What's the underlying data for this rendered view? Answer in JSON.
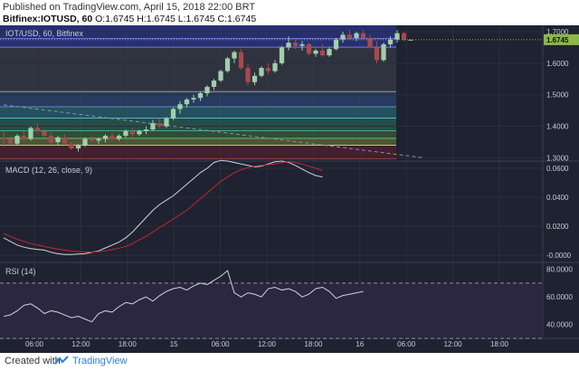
{
  "header": {
    "published": "Published on TradingView.com, April 15, 2018 22:00 BRT",
    "symbol": "Bitfinex:IOTUSD, 60",
    "ohlc": "O:1.6745 H:1.6745 L:1.6745 C:1.6745"
  },
  "footer": {
    "created_with": "Created with",
    "brand": "TradingView"
  },
  "colors": {
    "background": "#1f2230",
    "grid": "#2b2f3e",
    "axis_text": "#c8ccd6",
    "candle_up": "#a2ceaa",
    "candle_down": "#a84a4a",
    "macd_line": "#cfd3dc",
    "signal_line": "#c3262f",
    "rsi_line": "#cfd3dc",
    "rsi_band": "#2b2740",
    "price_label_bg": "#8cb84a"
  },
  "chart_data": [
    {
      "type": "candlestick",
      "title": "IOT/USD, 60, Bitfinex",
      "ylim": [
        1.29,
        1.72
      ],
      "yticks": [
        "1.3000",
        "1.4000",
        "1.5000",
        "1.6000",
        "1.7000"
      ],
      "last_price": "1.6745",
      "xticks": [
        "06:00",
        "12:00",
        "18:00",
        "15",
        "06:00",
        "12:00",
        "18:00",
        "16",
        "06:00",
        "12:00",
        "18:00"
      ],
      "fib_levels": [
        1.298,
        1.34,
        1.362,
        1.386,
        1.426,
        1.462,
        1.51,
        1.651,
        1.678,
        1.727
      ],
      "trendline": {
        "from": [
          0,
          1.468
        ],
        "to": [
          62,
          1.3
        ]
      },
      "candles": [
        [
          1.365,
          1.385,
          1.335,
          1.36
        ],
        [
          1.36,
          1.37,
          1.34,
          1.345
        ],
        [
          1.345,
          1.375,
          1.34,
          1.37
        ],
        [
          1.37,
          1.385,
          1.355,
          1.36
        ],
        [
          1.36,
          1.4,
          1.355,
          1.395
        ],
        [
          1.395,
          1.41,
          1.38,
          1.385
        ],
        [
          1.385,
          1.39,
          1.365,
          1.37
        ],
        [
          1.37,
          1.38,
          1.345,
          1.35
        ],
        [
          1.35,
          1.37,
          1.34,
          1.365
        ],
        [
          1.365,
          1.375,
          1.34,
          1.345
        ],
        [
          1.345,
          1.35,
          1.325,
          1.33
        ],
        [
          1.33,
          1.345,
          1.32,
          1.34
        ],
        [
          1.34,
          1.365,
          1.335,
          1.36
        ],
        [
          1.36,
          1.37,
          1.35,
          1.355
        ],
        [
          1.355,
          1.365,
          1.345,
          1.36
        ],
        [
          1.36,
          1.375,
          1.35,
          1.37
        ],
        [
          1.37,
          1.38,
          1.355,
          1.36
        ],
        [
          1.36,
          1.375,
          1.355,
          1.37
        ],
        [
          1.37,
          1.39,
          1.365,
          1.385
        ],
        [
          1.385,
          1.395,
          1.365,
          1.375
        ],
        [
          1.375,
          1.39,
          1.37,
          1.385
        ],
        [
          1.385,
          1.4,
          1.375,
          1.39
        ],
        [
          1.39,
          1.42,
          1.385,
          1.41
        ],
        [
          1.41,
          1.425,
          1.395,
          1.4
        ],
        [
          1.4,
          1.43,
          1.395,
          1.425
        ],
        [
          1.425,
          1.46,
          1.42,
          1.455
        ],
        [
          1.455,
          1.48,
          1.44,
          1.47
        ],
        [
          1.47,
          1.49,
          1.46,
          1.485
        ],
        [
          1.485,
          1.5,
          1.475,
          1.49
        ],
        [
          1.49,
          1.51,
          1.48,
          1.505
        ],
        [
          1.505,
          1.53,
          1.495,
          1.525
        ],
        [
          1.525,
          1.55,
          1.515,
          1.545
        ],
        [
          1.545,
          1.58,
          1.54,
          1.575
        ],
        [
          1.575,
          1.62,
          1.57,
          1.615
        ],
        [
          1.615,
          1.64,
          1.6,
          1.635
        ],
        [
          1.635,
          1.645,
          1.58,
          1.585
        ],
        [
          1.585,
          1.6,
          1.53,
          1.54
        ],
        [
          1.54,
          1.57,
          1.53,
          1.56
        ],
        [
          1.56,
          1.59,
          1.555,
          1.585
        ],
        [
          1.585,
          1.6,
          1.565,
          1.575
        ],
        [
          1.575,
          1.61,
          1.57,
          1.6
        ],
        [
          1.6,
          1.655,
          1.595,
          1.65
        ],
        [
          1.65,
          1.685,
          1.64,
          1.665
        ],
        [
          1.665,
          1.675,
          1.645,
          1.655
        ],
        [
          1.655,
          1.67,
          1.64,
          1.66
        ],
        [
          1.66,
          1.665,
          1.625,
          1.63
        ],
        [
          1.63,
          1.645,
          1.62,
          1.64
        ],
        [
          1.64,
          1.66,
          1.62,
          1.625
        ],
        [
          1.625,
          1.65,
          1.62,
          1.645
        ],
        [
          1.645,
          1.68,
          1.64,
          1.675
        ],
        [
          1.675,
          1.7,
          1.665,
          1.69
        ],
        [
          1.69,
          1.705,
          1.675,
          1.68
        ],
        [
          1.68,
          1.7,
          1.67,
          1.695
        ],
        [
          1.695,
          1.705,
          1.675,
          1.68
        ],
        [
          1.68,
          1.69,
          1.645,
          1.65
        ],
        [
          1.65,
          1.67,
          1.6,
          1.61
        ],
        [
          1.61,
          1.665,
          1.605,
          1.66
        ],
        [
          1.66,
          1.685,
          1.65,
          1.675
        ],
        [
          1.675,
          1.705,
          1.665,
          1.695
        ],
        [
          1.695,
          1.7,
          1.67,
          1.6745
        ],
        [
          1.6745,
          1.6745,
          1.6745,
          1.6745
        ]
      ]
    },
    {
      "type": "line",
      "title": "MACD (12, 26, close, 9)",
      "ylim": [
        -0.005,
        0.065
      ],
      "yticks": [
        "-0.0000",
        "0.0200",
        "0.0400",
        "0.0600"
      ],
      "series": [
        {
          "name": "MACD",
          "values": [
            0.012,
            0.0095,
            0.007,
            0.0055,
            0.0045,
            0.004,
            0.0035,
            0.002,
            0.001,
            0.0005,
            0.0005,
            0.0008,
            0.001,
            0.002,
            0.003,
            0.005,
            0.007,
            0.009,
            0.012,
            0.016,
            0.021,
            0.026,
            0.031,
            0.035,
            0.038,
            0.041,
            0.045,
            0.049,
            0.053,
            0.057,
            0.06,
            0.064,
            0.0655,
            0.065,
            0.064,
            0.063,
            0.062,
            0.061,
            0.0615,
            0.063,
            0.0645,
            0.065,
            0.064,
            0.062,
            0.0595,
            0.057,
            0.055,
            0.054
          ]
        },
        {
          "name": "Signal",
          "values": [
            0.015,
            0.013,
            0.011,
            0.0095,
            0.008,
            0.007,
            0.006,
            0.005,
            0.0042,
            0.0035,
            0.0028,
            0.0025,
            0.0022,
            0.0022,
            0.0024,
            0.003,
            0.0038,
            0.0048,
            0.006,
            0.008,
            0.0105,
            0.013,
            0.016,
            0.019,
            0.022,
            0.025,
            0.028,
            0.031,
            0.035,
            0.039,
            0.043,
            0.047,
            0.051,
            0.054,
            0.057,
            0.059,
            0.0605,
            0.0615,
            0.062,
            0.0625,
            0.063,
            0.064,
            0.0645,
            0.064,
            0.063,
            0.0615,
            0.06,
            0.0585
          ]
        }
      ]
    },
    {
      "type": "line",
      "title": "RSI (14)",
      "ylim": [
        30,
        85
      ],
      "yticks": [
        "40.0000",
        "60.0000",
        "80.0000"
      ],
      "band": [
        30,
        70
      ],
      "series": [
        {
          "name": "RSI",
          "values": [
            46,
            47,
            50,
            54,
            55,
            52,
            48,
            50,
            49,
            47,
            45,
            46,
            44,
            42,
            48,
            50,
            49,
            53,
            56,
            55,
            58,
            60,
            57,
            61,
            64,
            66,
            67,
            65,
            68,
            70,
            69,
            72,
            75,
            79,
            63,
            60,
            63,
            62,
            60,
            66,
            67,
            65,
            66,
            64,
            60,
            62,
            66,
            67,
            64,
            59,
            61,
            62,
            63,
            64
          ]
        }
      ]
    }
  ]
}
